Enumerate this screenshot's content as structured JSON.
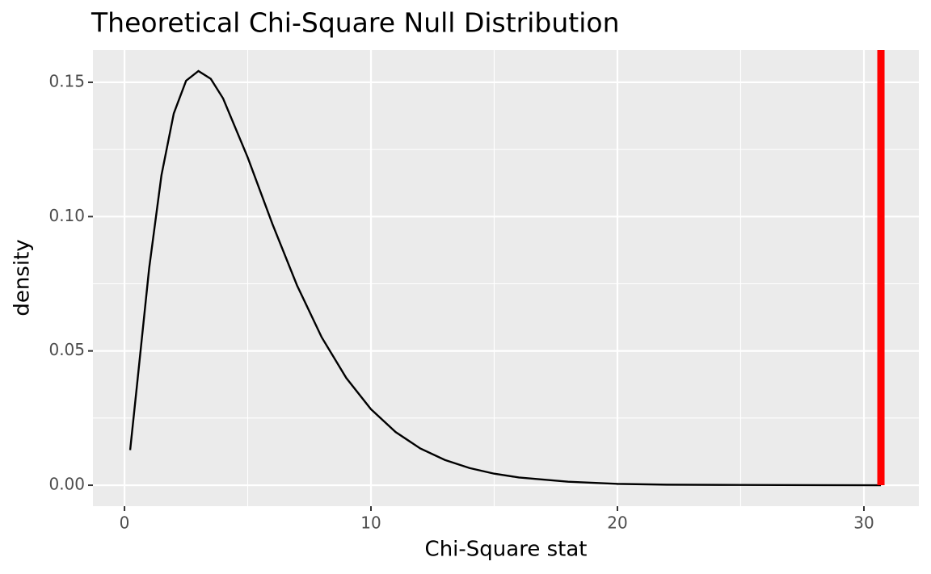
{
  "chart_data": {
    "type": "line",
    "title": "Theoretical Chi-Square Null Distribution",
    "x_label": "Chi-Square stat",
    "y_label": "density",
    "x": [
      0.23,
      0.5,
      1,
      1.5,
      2,
      2.5,
      3,
      3.5,
      4,
      5,
      6,
      7,
      8,
      9,
      10,
      11,
      12,
      13,
      14,
      15,
      16,
      18,
      20,
      22,
      25,
      30.69
    ],
    "series": [
      {
        "color": "#000000",
        "values": [
          0.0131,
          0.0366,
          0.0807,
          0.1154,
          0.1384,
          0.1506,
          0.1542,
          0.1513,
          0.144,
          0.122,
          0.0973,
          0.0744,
          0.0551,
          0.0399,
          0.0283,
          0.0198,
          0.0137,
          0.0094,
          0.0064,
          0.0043,
          0.0029,
          0.0013,
          0.0005,
          0.0002,
          0.0001,
          0
        ]
      }
    ],
    "vline": {
      "value": 30.69,
      "color": "#ff0000"
    },
    "xlim": [
      -1.28,
      32.23
    ],
    "ylim": [
      -0.0078,
      0.162
    ],
    "xticks": [
      0,
      10,
      20,
      30
    ],
    "yticks": [
      {
        "value": 0,
        "label": "0.00"
      },
      {
        "value": 0.05,
        "label": "0.05"
      },
      {
        "value": 0.1,
        "label": "0.10"
      },
      {
        "value": 0.15,
        "label": "0.15"
      }
    ],
    "x_minor": [
      5,
      15,
      25
    ],
    "y_minor": [
      0.025,
      0.075,
      0.125
    ],
    "grid": true
  }
}
